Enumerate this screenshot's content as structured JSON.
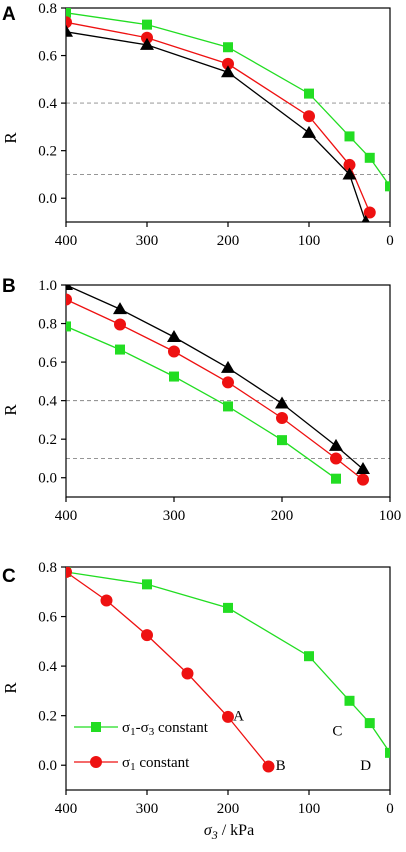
{
  "chart_data": [
    {
      "panel": "A",
      "type": "line",
      "ylabel": "R",
      "xlim": [
        400,
        0
      ],
      "ylim": [
        -0.1,
        0.8
      ],
      "xticks": [
        "400",
        "300",
        "200",
        "100",
        "0"
      ],
      "yticks": [
        "0.8",
        "0.6",
        "0.4",
        "0.2",
        "0.0"
      ],
      "reference_lines": [
        0.4,
        0.1
      ],
      "series": [
        {
          "color": "#22dd22",
          "marker": "square",
          "x": [
            400,
            300,
            200,
            100,
            50,
            25,
            0
          ],
          "y": [
            0.78,
            0.73,
            0.635,
            0.44,
            0.26,
            0.17,
            0.05
          ]
        },
        {
          "color": "#ee1111",
          "marker": "circle",
          "x": [
            400,
            300,
            200,
            100,
            50,
            25
          ],
          "y": [
            0.74,
            0.675,
            0.565,
            0.345,
            0.14,
            -0.06
          ]
        },
        {
          "color": "#000000",
          "marker": "triangle",
          "x": [
            400,
            300,
            200,
            100,
            50,
            30
          ],
          "y": [
            0.7,
            0.645,
            0.53,
            0.275,
            0.1,
            -0.1
          ]
        }
      ]
    },
    {
      "panel": "B",
      "type": "line",
      "ylabel": "R",
      "xlim": [
        400,
        100
      ],
      "ylim": [
        -0.1,
        1.0
      ],
      "xticks": [
        "400",
        "300",
        "200",
        "100"
      ],
      "yticks": [
        "1.0",
        "0.8",
        "0.6",
        "0.4",
        "0.2",
        "0.0"
      ],
      "reference_lines": [
        0.4,
        0.1
      ],
      "series": [
        {
          "color": "#22dd22",
          "marker": "square",
          "x": [
            400,
            350,
            300,
            250,
            200,
            150
          ],
          "y": [
            0.785,
            0.665,
            0.525,
            0.37,
            0.195,
            -0.005
          ]
        },
        {
          "color": "#ee1111",
          "marker": "circle",
          "x": [
            400,
            350,
            300,
            250,
            200,
            150,
            125
          ],
          "y": [
            0.925,
            0.795,
            0.655,
            0.495,
            0.31,
            0.1,
            -0.01
          ]
        },
        {
          "color": "#000000",
          "marker": "triangle",
          "x": [
            400,
            350,
            300,
            250,
            200,
            150,
            125
          ],
          "y": [
            1.0,
            0.875,
            0.73,
            0.57,
            0.385,
            0.165,
            0.045
          ]
        }
      ]
    },
    {
      "panel": "C",
      "type": "line",
      "ylabel": "R",
      "xlabel": "σ3 / kPa",
      "xlim": [
        400,
        0
      ],
      "ylim": [
        -0.1,
        0.8
      ],
      "xticks": [
        "400",
        "300",
        "200",
        "100",
        "0"
      ],
      "yticks": [
        "0.8",
        "0.6",
        "0.4",
        "0.2",
        "0.0"
      ],
      "legend_position": "lower-left",
      "series": [
        {
          "name": "σ1-σ3 constant",
          "color": "#22dd22",
          "marker": "square",
          "x": [
            400,
            300,
            200,
            100,
            50,
            25,
            0
          ],
          "y": [
            0.78,
            0.73,
            0.635,
            0.44,
            0.26,
            0.17,
            0.05
          ]
        },
        {
          "name": "σ1 constant",
          "color": "#ee1111",
          "marker": "circle",
          "x": [
            400,
            350,
            300,
            250,
            200,
            150
          ],
          "y": [
            0.78,
            0.665,
            0.525,
            0.37,
            0.195,
            -0.005
          ]
        }
      ],
      "annotations": [
        {
          "text": "A",
          "x": 187,
          "y": 0.2
        },
        {
          "text": "B",
          "x": 135,
          "y": 0.0
        },
        {
          "text": "C",
          "x": 65,
          "y": 0.14
        },
        {
          "text": "D",
          "x": 30,
          "y": 0.0
        }
      ]
    }
  ]
}
